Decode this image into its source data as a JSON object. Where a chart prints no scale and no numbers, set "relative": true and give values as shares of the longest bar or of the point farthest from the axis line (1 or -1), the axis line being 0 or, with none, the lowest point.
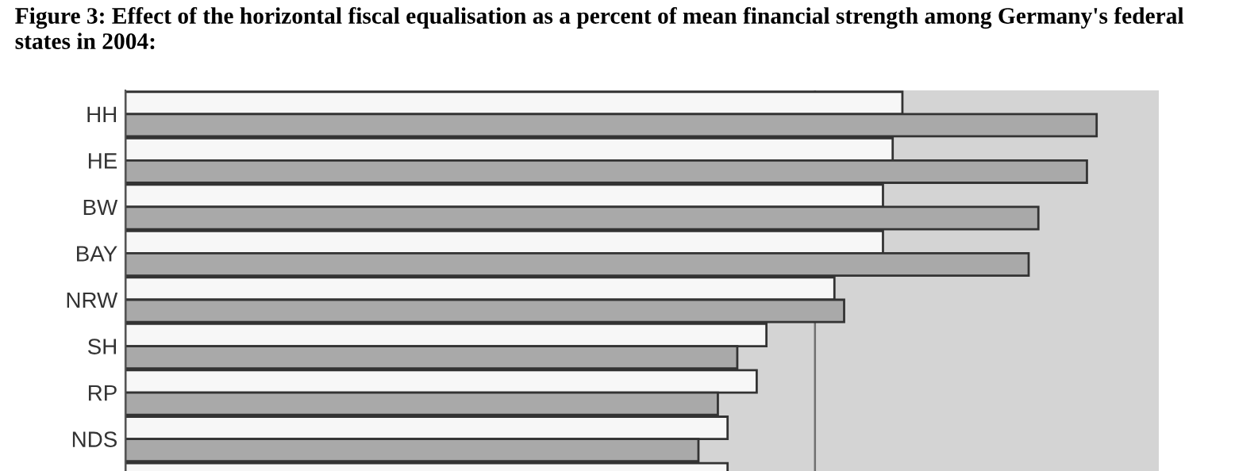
{
  "chart_data": {
    "type": "bar",
    "orientation": "horizontal",
    "relative": true,
    "title": "Figure 3: Effect of the horizontal fiscal equalisation as a percent of mean financial strength among Germany's federal states in 2004:",
    "categories": [
      "HH",
      "HE",
      "BW",
      "BAY",
      "NRW",
      "SH",
      "RP",
      "NDS",
      null
    ],
    "series": [
      {
        "color": "#f7f7f7",
        "values": [
          0.8,
          0.79,
          0.78,
          0.78,
          0.73,
          0.66,
          0.65,
          0.62,
          0.62
        ]
      },
      {
        "color": "#a9a9a9",
        "values": [
          1.0,
          0.99,
          0.94,
          0.93,
          0.74,
          0.63,
          0.61,
          0.59,
          null
        ]
      }
    ],
    "ref_lines": [
      {
        "axis": "x",
        "value": 0.71,
        "color": "#707070"
      }
    ],
    "grid": false,
    "legend": false
  }
}
